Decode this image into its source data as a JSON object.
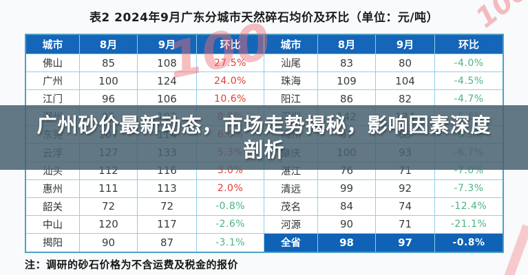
{
  "page": {
    "title": "表2 2024年9月广东分城市天然碎石均价及环比（单位：元/吨）",
    "note": "注：调研的砂石价格为不含运费及税金的报价"
  },
  "banner": {
    "lines": [
      "广州砂价最新动态，市场走势揭秘，影响因素深度",
      "剖析"
    ]
  },
  "watermark": {
    "logo_text": "100"
  },
  "colors": {
    "header_bg": "#1565b8",
    "total_row_bg": "#0f62b5",
    "up_red": "#e03c32",
    "down_green": "#4cb381",
    "grid_border": "#8ecfe9",
    "banner_bg": "rgba(70,96,110,0.85)",
    "watermark_pink": "rgba(238,110,118,0.45)"
  },
  "table": {
    "headers": [
      "城市",
      "8月",
      "9月",
      "环比"
    ],
    "left_rows": [
      {
        "city": "佛山",
        "aug": "85",
        "sep": "108",
        "mom": "27.5%"
      },
      {
        "city": "广州",
        "aug": "100",
        "sep": "124",
        "mom": "24.0%"
      },
      {
        "city": "江门",
        "aug": "96",
        "sep": "106",
        "mom": "10.6%"
      },
      {
        "city": "潮州",
        "aug": "95",
        "sep": "103",
        "mom": "8.8%"
      },
      {
        "city": "东莞",
        "aug": "107",
        "sep": "114",
        "mom": "6.6%"
      },
      {
        "city": "云浮",
        "aug": "127",
        "sep": "133",
        "mom": "5.3%"
      },
      {
        "city": "汕头",
        "aug": "112",
        "sep": "116",
        "mom": "3.0%"
      },
      {
        "city": "惠州",
        "aug": "111",
        "sep": "113",
        "mom": "2.0%"
      },
      {
        "city": "韶关",
        "aug": "72",
        "sep": "72",
        "mom": "-0.8%"
      },
      {
        "city": "中山",
        "aug": "120",
        "sep": "117",
        "mom": "-2.6%"
      },
      {
        "city": "揭阳",
        "aug": "90",
        "sep": "87",
        "mom": "-3.1%"
      }
    ],
    "right_rows": [
      {
        "city": "汕尾",
        "aug": "83",
        "sep": "80",
        "mom": "-4.0%"
      },
      {
        "city": "珠海",
        "aug": "109",
        "sep": "104",
        "mom": "-4.5%"
      },
      {
        "city": "阳江",
        "aug": "86",
        "sep": "82",
        "mom": "-4.7%"
      },
      {
        "city": "深圳",
        "aug": "142",
        "sep": "134",
        "mom": "-5.6%"
      },
      {
        "city": "梅州",
        "aug": "67",
        "sep": "63",
        "mom": "-6.2%"
      },
      {
        "city": "肇庆",
        "aug": "100",
        "sep": "93",
        "mom": "-6.7%"
      },
      {
        "city": "湛江",
        "aug": "76",
        "sep": "71",
        "mom": "-7.0%"
      },
      {
        "city": "清远",
        "aug": "99",
        "sep": "92",
        "mom": "-7.3%"
      },
      {
        "city": "茂名",
        "aug": "84",
        "sep": "74",
        "mom": "-12.4%"
      },
      {
        "city": "河源",
        "aug": "90",
        "sep": "71",
        "mom": "-21.1%"
      },
      {
        "city": "全省",
        "aug": "98",
        "sep": "97",
        "mom": "-0.8%",
        "total": true
      }
    ]
  },
  "chart_data": {
    "type": "table",
    "title": "表2 2024年9月广东分城市天然碎石均价及环比（单位：元/吨）",
    "columns": [
      "城市",
      "8月",
      "9月",
      "环比"
    ],
    "rows": [
      [
        "佛山",
        85,
        108,
        "27.5%"
      ],
      [
        "广州",
        100,
        124,
        "24.0%"
      ],
      [
        "江门",
        96,
        106,
        "10.6%"
      ],
      [
        "潮州",
        95,
        103,
        "8.8%"
      ],
      [
        "东莞",
        107,
        114,
        "6.6%"
      ],
      [
        "云浮",
        127,
        133,
        "5.3%"
      ],
      [
        "汕头",
        112,
        116,
        "3.0%"
      ],
      [
        "惠州",
        111,
        113,
        "2.0%"
      ],
      [
        "韶关",
        72,
        72,
        "-0.8%"
      ],
      [
        "中山",
        120,
        117,
        "-2.6%"
      ],
      [
        "揭阳",
        90,
        87,
        "-3.1%"
      ],
      [
        "汕尾",
        83,
        80,
        "-4.0%"
      ],
      [
        "珠海",
        109,
        104,
        "-4.5%"
      ],
      [
        "阳江",
        86,
        82,
        "-4.7%"
      ],
      [
        "深圳",
        142,
        134,
        "-5.6%"
      ],
      [
        "梅州",
        67,
        63,
        "-6.2%"
      ],
      [
        "肇庆",
        100,
        93,
        "-6.7%"
      ],
      [
        "湛江",
        76,
        71,
        "-7.0%"
      ],
      [
        "清远",
        99,
        92,
        "-7.3%"
      ],
      [
        "茂名",
        84,
        74,
        "-12.4%"
      ],
      [
        "河源",
        90,
        71,
        "-21.1%"
      ],
      [
        "全省",
        98,
        97,
        "-0.8%"
      ]
    ],
    "note": "注：调研的砂石价格为不含运费及税金的报价",
    "legend_position": "none",
    "grid": true,
    "value_color_rule": "positive mom = red, negative mom = green, 全省 row = white on blue"
  }
}
